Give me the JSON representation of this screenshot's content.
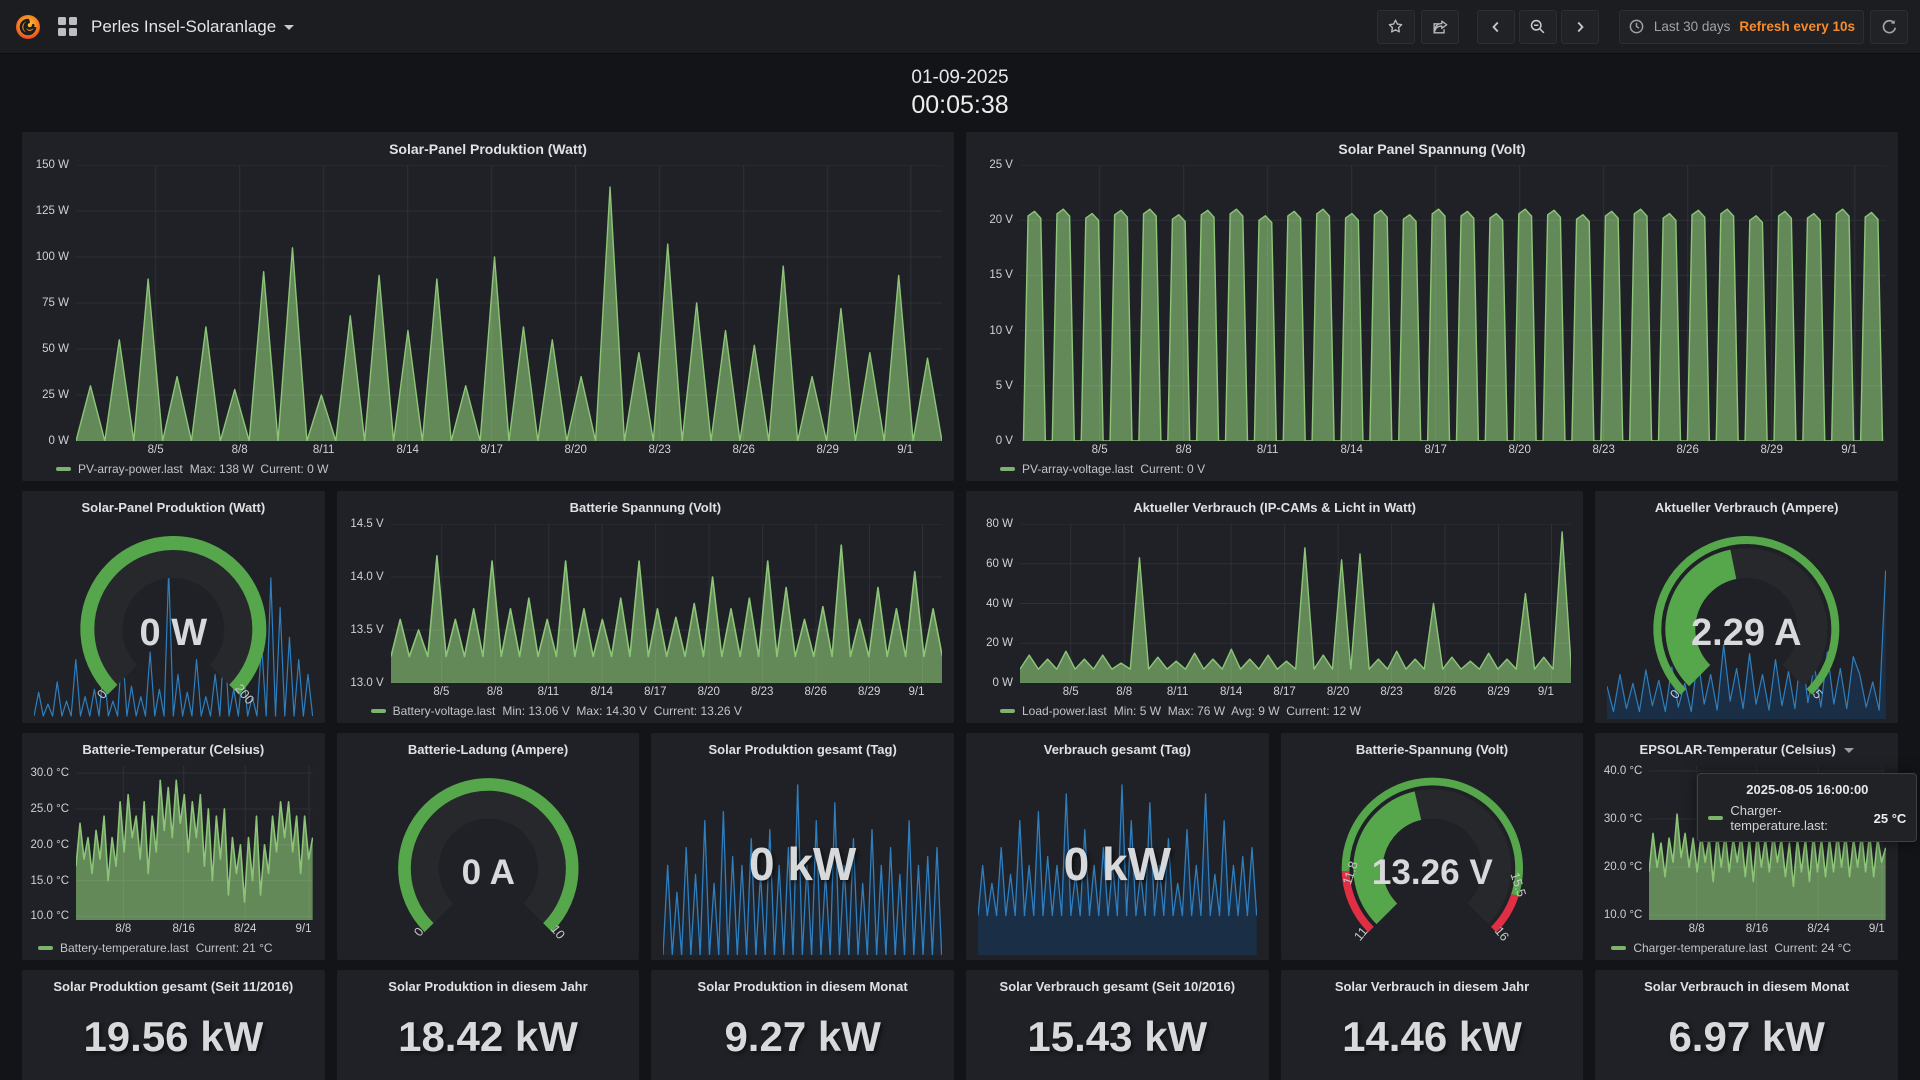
{
  "toolbar": {
    "title": "Perles Insel-Solaranlage",
    "time_range": "Last 30 days",
    "refresh": "Refresh every 10s"
  },
  "clock": {
    "date": "01-09-2025",
    "time": "00:05:38"
  },
  "panels": {
    "pv_power": {
      "title": "Solar-Panel Produktion (Watt)",
      "legend": {
        "name": "PV-array-power.last",
        "stats": "Max: 138 W  Current: 0 W"
      }
    },
    "pv_voltage": {
      "title": "Solar Panel Spannung (Volt)",
      "legend": {
        "name": "PV-array-voltage.last",
        "stats": "Current: 0 V"
      }
    },
    "watt_gauge": {
      "title": "Solar-Panel Produktion (Watt)"
    },
    "batt_voltage": {
      "title": "Batterie Spannung (Volt)",
      "legend": {
        "name": "Battery-voltage.last",
        "stats": "Min: 13.06 V  Max: 14.30 V  Current: 13.26 V"
      }
    },
    "load": {
      "title": "Aktueller Verbrauch (IP-CAMs & Licht in Watt)",
      "legend": {
        "name": "Load-power.last",
        "stats": "Min: 5 W  Max: 76 W  Avg: 9 W  Current: 12 W"
      }
    },
    "amp_gauge": {
      "title": "Aktueller Verbrauch (Ampere)"
    },
    "batt_temp": {
      "title": "Batterie-Temperatur (Celsius)",
      "legend": {
        "name": "Battery-temperature.last",
        "stats": "Current: 21 °C"
      }
    },
    "charge_gauge": {
      "title": "Batterie-Ladung (Ampere)"
    },
    "prod_tag": {
      "title": "Solar Produktion gesamt (Tag)",
      "value": "0 kW"
    },
    "verb_tag": {
      "title": "Verbrauch gesamt (Tag)",
      "value": "0 kW"
    },
    "battv_gauge": {
      "title": "Batterie-Spannung (Volt)"
    },
    "epsolar": {
      "title": "EPSOLAR-Temperatur (Celsius)",
      "legend": {
        "name": "Charger-temperature.last",
        "stats": "Current: 24 °C"
      },
      "tooltip": {
        "date": "2025-08-05 16:00:00",
        "series": "Charger-temperature.last:",
        "value": "25 °C"
      }
    },
    "stats": [
      {
        "title": "Solar Produktion gesamt (Seit 11/2016)",
        "value": "19.56 kW"
      },
      {
        "title": "Solar Produktion in diesem Jahr",
        "value": "18.42 kW"
      },
      {
        "title": "Solar Produktion in diesem Monat",
        "value": "9.27 kW"
      },
      {
        "title": "Solar Verbrauch gesamt (Seit 10/2016)",
        "value": "15.43 kW"
      },
      {
        "title": "Solar Verbrauch in diesem Jahr",
        "value": "14.46 kW"
      },
      {
        "title": "Solar Verbrauch in diesem Monat",
        "value": "6.97 kW"
      }
    ]
  },
  "chart_data": {
    "pv_power": {
      "type": "area",
      "shape": "spikes",
      "baseline": 0,
      "ymin": 0,
      "ymax": 150,
      "color": "#8dc578",
      "fill": "rgba(126,178,109,0.72)",
      "lw": 1.4,
      "values": [
        30,
        55,
        88,
        35,
        62,
        28,
        92,
        105,
        25,
        68,
        90,
        60,
        88,
        30,
        100,
        62,
        55,
        35,
        138,
        48,
        107,
        75,
        60,
        52,
        95,
        35,
        72,
        48,
        90,
        45
      ],
      "yticks": [
        {
          "v": 150,
          "l": "150 W"
        },
        {
          "v": 125,
          "l": "125 W"
        },
        {
          "v": 100,
          "l": "100 W"
        },
        {
          "v": 75,
          "l": "75 W"
        },
        {
          "v": 50,
          "l": "50 W"
        },
        {
          "v": 25,
          "l": "25 W"
        },
        {
          "v": 0,
          "l": "0 W"
        }
      ],
      "xticks": [
        {
          "f": 0.092,
          "l": "8/5"
        },
        {
          "f": 0.189,
          "l": "8/8"
        },
        {
          "f": 0.286,
          "l": "8/11"
        },
        {
          "f": 0.383,
          "l": "8/14"
        },
        {
          "f": 0.48,
          "l": "8/17"
        },
        {
          "f": 0.577,
          "l": "8/20"
        },
        {
          "f": 0.674,
          "l": "8/23"
        },
        {
          "f": 0.771,
          "l": "8/26"
        },
        {
          "f": 0.868,
          "l": "8/29"
        },
        {
          "f": 0.964,
          "l": "9/1"
        }
      ]
    },
    "pv_voltage": {
      "type": "area",
      "shape": "pulses",
      "baseline": 0,
      "ymin": 0,
      "ymax": 25,
      "color": "#8dc578",
      "fill": "rgba(126,178,109,0.72)",
      "lw": 1.4,
      "values": [
        20.8,
        21,
        20.6,
        20.9,
        21,
        20.5,
        20.9,
        21,
        20.4,
        20.8,
        21,
        20.6,
        20.9,
        20.5,
        21,
        20.8,
        20.6,
        21,
        20.9,
        20.5,
        20.8,
        21,
        20.6,
        20.9,
        21,
        20.4,
        20.8,
        20.6,
        21,
        20.7
      ],
      "yticks": [
        {
          "v": 25,
          "l": "25 V"
        },
        {
          "v": 20,
          "l": "20 V"
        },
        {
          "v": 15,
          "l": "15 V"
        },
        {
          "v": 10,
          "l": "10 V"
        },
        {
          "v": 5,
          "l": "5 V"
        },
        {
          "v": 0,
          "l": "0 V"
        }
      ],
      "xticks": [
        {
          "f": 0.092,
          "l": "8/5"
        },
        {
          "f": 0.189,
          "l": "8/8"
        },
        {
          "f": 0.286,
          "l": "8/11"
        },
        {
          "f": 0.383,
          "l": "8/14"
        },
        {
          "f": 0.48,
          "l": "8/17"
        },
        {
          "f": 0.577,
          "l": "8/20"
        },
        {
          "f": 0.674,
          "l": "8/23"
        },
        {
          "f": 0.771,
          "l": "8/26"
        },
        {
          "f": 0.868,
          "l": "8/29"
        },
        {
          "f": 0.964,
          "l": "9/1"
        }
      ]
    },
    "batt_voltage": {
      "type": "area",
      "shape": "spikes",
      "baseline": 13.25,
      "ymin": 13.0,
      "ymax": 14.5,
      "color": "#8dc578",
      "fill": "rgba(126,178,109,0.72)",
      "lw": 1.6,
      "values": [
        13.6,
        13.5,
        14.2,
        13.6,
        13.7,
        14.15,
        13.7,
        13.8,
        13.6,
        14.15,
        13.7,
        13.6,
        13.8,
        14.15,
        13.7,
        13.62,
        13.75,
        14.0,
        13.7,
        13.8,
        14.15,
        13.9,
        13.6,
        13.72,
        14.3,
        13.6,
        13.9,
        13.7,
        14.05,
        13.7
      ],
      "yticks": [
        {
          "v": 14.5,
          "l": "14.5 V"
        },
        {
          "v": 14.0,
          "l": "14.0 V"
        },
        {
          "v": 13.5,
          "l": "13.5 V"
        },
        {
          "v": 13.0,
          "l": "13.0 V"
        }
      ],
      "xticks": [
        {
          "f": 0.092,
          "l": "8/5"
        },
        {
          "f": 0.189,
          "l": "8/8"
        },
        {
          "f": 0.286,
          "l": "8/11"
        },
        {
          "f": 0.383,
          "l": "8/14"
        },
        {
          "f": 0.48,
          "l": "8/17"
        },
        {
          "f": 0.577,
          "l": "8/20"
        },
        {
          "f": 0.674,
          "l": "8/23"
        },
        {
          "f": 0.771,
          "l": "8/26"
        },
        {
          "f": 0.868,
          "l": "8/29"
        },
        {
          "f": 0.964,
          "l": "9/1"
        }
      ]
    },
    "load": {
      "type": "area",
      "shape": "spikes",
      "baseline": 7,
      "ymin": 0,
      "ymax": 80,
      "color": "#8dc578",
      "fill": "rgba(126,178,109,0.72)",
      "lw": 1.4,
      "values": [
        14,
        12,
        16,
        12,
        14,
        10,
        63,
        13,
        11,
        15,
        12,
        17,
        12,
        14,
        11,
        68,
        14,
        62,
        65,
        12,
        16,
        12,
        40,
        13,
        11,
        15,
        12,
        45,
        13,
        76
      ],
      "yticks": [
        {
          "v": 80,
          "l": "80 W"
        },
        {
          "v": 60,
          "l": "60 W"
        },
        {
          "v": 40,
          "l": "40 W"
        },
        {
          "v": 20,
          "l": "20 W"
        },
        {
          "v": 0,
          "l": "0 W"
        }
      ],
      "xticks": [
        {
          "f": 0.092,
          "l": "8/5"
        },
        {
          "f": 0.189,
          "l": "8/8"
        },
        {
          "f": 0.286,
          "l": "8/11"
        },
        {
          "f": 0.383,
          "l": "8/14"
        },
        {
          "f": 0.48,
          "l": "8/17"
        },
        {
          "f": 0.577,
          "l": "8/20"
        },
        {
          "f": 0.674,
          "l": "8/23"
        },
        {
          "f": 0.771,
          "l": "8/26"
        },
        {
          "f": 0.868,
          "l": "8/29"
        },
        {
          "f": 0.964,
          "l": "9/1"
        }
      ]
    },
    "batt_temp": {
      "type": "area",
      "shape": "line",
      "ymin": 9.5,
      "ymax": 31,
      "color": "#8dc578",
      "fill": "rgba(126,178,109,0.72)",
      "lw": 1.6,
      "values": [
        17,
        23,
        18,
        21,
        16,
        22,
        18,
        24,
        15,
        21,
        17,
        26,
        19,
        27,
        21,
        24,
        18,
        26,
        16,
        24,
        19,
        29,
        22,
        28,
        21,
        29,
        23,
        27,
        19,
        26,
        21,
        27,
        17,
        25,
        15,
        24,
        18,
        25,
        13,
        21,
        16,
        20,
        12,
        21,
        15,
        24,
        13,
        20,
        16,
        24,
        19,
        26,
        21,
        26,
        19,
        24,
        16,
        24,
        18,
        21
      ],
      "yticks": [
        {
          "v": 30,
          "l": "30.0 °C"
        },
        {
          "v": 25,
          "l": "25.0 °C"
        },
        {
          "v": 20,
          "l": "20.0 °C"
        },
        {
          "v": 15,
          "l": "15.0 °C"
        },
        {
          "v": 10,
          "l": "10.0 °C"
        }
      ],
      "xticks": [
        {
          "f": 0.2,
          "l": "8/8"
        },
        {
          "f": 0.455,
          "l": "8/16"
        },
        {
          "f": 0.715,
          "l": "8/24"
        },
        {
          "f": 0.985,
          "l": "9/1"
        }
      ]
    },
    "epsolar": {
      "type": "area",
      "shape": "line",
      "ymin": 9,
      "ymax": 41,
      "color": "#8dc578",
      "fill": "rgba(126,178,109,0.72)",
      "lw": 1.6,
      "values": [
        19,
        27,
        20,
        25,
        18,
        26,
        21,
        31,
        22,
        27,
        20,
        26,
        19,
        27,
        21,
        26,
        17,
        27,
        20,
        27,
        19,
        26,
        21,
        27,
        18,
        26,
        17,
        27,
        20,
        26,
        19,
        27,
        21,
        26,
        18,
        25,
        16,
        26,
        19,
        26,
        17,
        27,
        19,
        26,
        18,
        26,
        19,
        27,
        20,
        27,
        18,
        26,
        20,
        27,
        19,
        27,
        18,
        26,
        21,
        24
      ],
      "yticks": [
        {
          "v": 40,
          "l": "40.0 °C"
        },
        {
          "v": 30,
          "l": "30.0 °C"
        },
        {
          "v": 20,
          "l": "20.0 °C"
        },
        {
          "v": 10,
          "l": "10.0 °C"
        }
      ],
      "xticks": [
        {
          "f": 0.2,
          "l": "8/8"
        },
        {
          "f": 0.455,
          "l": "8/16"
        },
        {
          "f": 0.715,
          "l": "8/24"
        },
        {
          "f": 0.985,
          "l": "9/1"
        }
      ]
    },
    "spark_watt": {
      "type": "area",
      "shape": "spikes",
      "baseline": 0.02,
      "ymin": 0,
      "ymax": 1.05,
      "color": "#2f7ebd",
      "lw": 1.2,
      "values": [
        0.18,
        0.1,
        0.25,
        0.12,
        0.4,
        0.15,
        0.2,
        0.35,
        0.12,
        0.5,
        0.22,
        0.15,
        0.45,
        0.2,
        1.0,
        0.3,
        0.18,
        0.4,
        0.15,
        0.3,
        0.55,
        0.2,
        0.35,
        0.15,
        0.5,
        0.95,
        0.75,
        0.55,
        0.4,
        0.3
      ]
    },
    "spark_amp": {
      "type": "area",
      "shape": "line",
      "ymin": 0,
      "ymax": 1.05,
      "color": "#2f7ebd",
      "fill": "rgba(24,56,90,0.6)",
      "lw": 1.2,
      "values": [
        0.22,
        0.05,
        0.3,
        0.07,
        0.24,
        0.05,
        0.33,
        0.09,
        0.26,
        0.05,
        0.35,
        0.08,
        0.24,
        0.05,
        0.42,
        0.1,
        0.3,
        0.06,
        0.5,
        0.12,
        0.34,
        0.07,
        0.44,
        0.1,
        0.3,
        0.06,
        0.4,
        0.09,
        0.32,
        0.07,
        0.48,
        0.11,
        0.36,
        0.08,
        0.45,
        0.1,
        0.34,
        0.07,
        0.42,
        0.3,
        0.08,
        0.25,
        0.06,
        1.0
      ]
    },
    "prod_tag": {
      "type": "area",
      "shape": "spikes",
      "baseline": 0,
      "ymin": 0,
      "ymax": 1.05,
      "color": "#2f7ebd",
      "fill": "rgba(24,56,90,0.25)",
      "lw": 1.3,
      "values": [
        0.5,
        0.35,
        0.6,
        0.45,
        0.75,
        0.4,
        0.8,
        0.55,
        0.5,
        0.65,
        0.45,
        0.7,
        0.5,
        0.6,
        0.95,
        0.5,
        0.75,
        0.45,
        0.85,
        0.5,
        0.65,
        0.4,
        0.7,
        0.5,
        0.6,
        0.45,
        0.75,
        0.5,
        0.55,
        0.6
      ]
    },
    "verb_tag": {
      "type": "area",
      "shape": "spikes",
      "baseline": 0.22,
      "ymin": 0,
      "ymax": 1.05,
      "color": "#2f7ebd",
      "fill": "rgba(24,56,90,0.6)",
      "lw": 1.3,
      "values": [
        0.5,
        0.4,
        0.6,
        0.45,
        0.75,
        0.5,
        0.8,
        0.55,
        0.5,
        0.9,
        0.45,
        0.7,
        0.5,
        0.6,
        0.5,
        0.95,
        0.75,
        0.45,
        0.85,
        0.5,
        0.65,
        0.4,
        0.7,
        0.5,
        0.9,
        0.45,
        0.75,
        0.5,
        0.55,
        0.6
      ]
    },
    "watt_gauge": {
      "type": "gauge",
      "frac": 0,
      "value": "0 W",
      "vs": 19,
      "bw": 7,
      "br": 43,
      "bands": [
        {
          "f0": 0,
          "f1": 1,
          "c": "#56a64b"
        }
      ],
      "labels": [
        {
          "t": "0",
          "x": 16,
          "y": 88,
          "r": -50
        },
        {
          "t": "200",
          "x": 84,
          "y": 88,
          "r": 50
        }
      ]
    },
    "amp_gauge": {
      "type": "gauge",
      "frac": 0.458,
      "value": "2.29 A",
      "vs": 19,
      "bw": 4,
      "br": 44.5,
      "bands": [
        {
          "f0": 0,
          "f1": 1,
          "c": "#56a64b"
        }
      ],
      "labels": [
        {
          "t": "0",
          "x": 16,
          "y": 88,
          "r": -50
        },
        {
          "t": "5",
          "x": 84,
          "y": 88,
          "r": 50
        }
      ]
    },
    "charge_gauge": {
      "type": "gauge",
      "frac": 0,
      "value": "0 A",
      "vs": 18,
      "bw": 6.5,
      "br": 43,
      "bands": [
        {
          "f0": 0,
          "f1": 1,
          "c": "#56a64b"
        }
      ],
      "labels": [
        {
          "t": "0",
          "x": 16,
          "y": 88,
          "r": -50
        },
        {
          "t": "10",
          "x": 84,
          "y": 88,
          "r": 50
        }
      ]
    },
    "battv_gauge": {
      "type": "gauge",
      "frac": 0.452,
      "value": "13.26 V",
      "vs": 18,
      "bw": 4,
      "br": 44.5,
      "bands": [
        {
          "f0": 0,
          "f1": 0.16,
          "c": "#e02f44"
        },
        {
          "f0": 0.16,
          "f1": 0.9,
          "c": "#56a64b"
        },
        {
          "f0": 0.9,
          "f1": 1,
          "c": "#e02f44"
        }
      ],
      "labels": [
        {
          "t": "11",
          "x": 15,
          "y": 89,
          "r": -50
        },
        {
          "t": "11.8",
          "x": 10,
          "y": 57,
          "r": -72
        },
        {
          "t": "15.5",
          "x": 92,
          "y": 63,
          "r": 72
        },
        {
          "t": "16",
          "x": 84,
          "y": 89,
          "r": 50
        }
      ]
    }
  }
}
